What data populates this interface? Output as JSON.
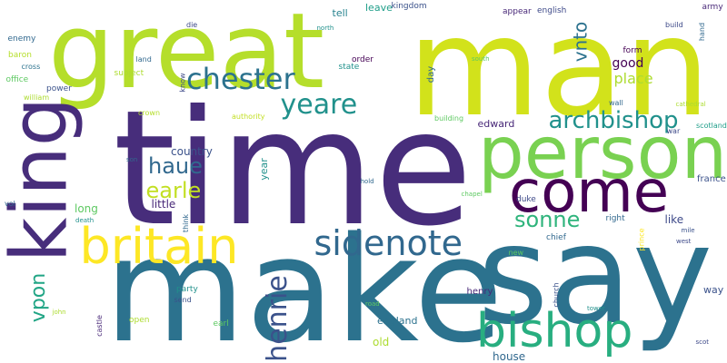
{
  "background": "#ffffff",
  "palette": [
    "#d2e21b",
    "#472d7b",
    "#2c728e",
    "#28ae80",
    "#79d151",
    "#31688e",
    "#3b528b",
    "#fde725"
  ],
  "words": [
    {
      "text": "man",
      "color": "#d2e21b"
    },
    {
      "text": "time",
      "color": "#472d7b"
    },
    {
      "text": "make",
      "color": "#2c728e"
    },
    {
      "text": "say",
      "color": "#2c728e"
    },
    {
      "text": "great",
      "color": "#b5de2b"
    },
    {
      "text": "person",
      "color": "#79d151"
    },
    {
      "text": "come",
      "color": "#440154"
    },
    {
      "text": "king",
      "color": "#472d7b"
    },
    {
      "text": "britain",
      "color": "#fde725"
    },
    {
      "text": "bishop",
      "color": "#28ae80"
    },
    {
      "text": "sidenote",
      "color": "#31688e"
    },
    {
      "text": "chester",
      "color": "#2c728e"
    },
    {
      "text": "archbishop",
      "color": "#21918c"
    },
    {
      "text": "henrie",
      "color": "#3b528b"
    },
    {
      "text": "haue",
      "color": "#31688e"
    },
    {
      "text": "earle",
      "color": "#c2df23"
    },
    {
      "text": "yeare",
      "color": "#21918c"
    },
    {
      "text": "sonne",
      "color": "#2fb47c"
    },
    {
      "text": "vpon",
      "color": "#21a585"
    },
    {
      "text": "vnto",
      "color": "#2c728e"
    },
    {
      "text": "place",
      "color": "#addc30"
    },
    {
      "text": "good",
      "color": "#440154"
    },
    {
      "text": "country",
      "color": "#3b528b"
    },
    {
      "text": "long",
      "color": "#5ec962"
    },
    {
      "text": "little",
      "color": "#482878"
    },
    {
      "text": "edward",
      "color": "#482878"
    },
    {
      "text": "house",
      "color": "#31688e"
    },
    {
      "text": "like",
      "color": "#3e4a89"
    },
    {
      "text": "way",
      "color": "#3b528b"
    },
    {
      "text": "day",
      "color": "#31688e"
    },
    {
      "text": "tell",
      "color": "#26828e"
    },
    {
      "text": "leave",
      "color": "#1f9e89"
    },
    {
      "text": "form",
      "color": "#440154"
    },
    {
      "text": "old",
      "color": "#addc30"
    },
    {
      "text": "year",
      "color": "#21918c"
    },
    {
      "text": "england",
      "color": "#2c728e"
    },
    {
      "text": "henry",
      "color": "#482878"
    },
    {
      "text": "duke",
      "color": "#3e4a89"
    },
    {
      "text": "right",
      "color": "#31688e"
    },
    {
      "text": "france",
      "color": "#3b528b"
    },
    {
      "text": "chief",
      "color": "#31688e"
    },
    {
      "text": "appear",
      "color": "#482878"
    },
    {
      "text": "english",
      "color": "#3e4a89"
    },
    {
      "text": "kingdom",
      "color": "#3b528b"
    },
    {
      "text": "army",
      "color": "#482878"
    },
    {
      "text": "build",
      "color": "#3e4a89"
    },
    {
      "text": "hand",
      "color": "#31688e"
    },
    {
      "text": "enemy",
      "color": "#31688e"
    },
    {
      "text": "baron",
      "color": "#b5de2b"
    },
    {
      "text": "cross",
      "color": "#2c728e"
    },
    {
      "text": "office",
      "color": "#5ec962"
    },
    {
      "text": "william",
      "color": "#addc30"
    },
    {
      "text": "power",
      "color": "#3b528b"
    },
    {
      "text": "subject",
      "color": "#addc30"
    },
    {
      "text": "land",
      "color": "#31688e"
    },
    {
      "text": "die",
      "color": "#3e4a89"
    },
    {
      "text": "north",
      "color": "#21918c"
    },
    {
      "text": "state",
      "color": "#21918c"
    },
    {
      "text": "order",
      "color": "#440154"
    },
    {
      "text": "south",
      "color": "#5ec962"
    },
    {
      "text": "know",
      "color": "#3e4a89"
    },
    {
      "text": "crown",
      "color": "#b5de2b"
    },
    {
      "text": "authority",
      "color": "#c2df23"
    },
    {
      "text": "building",
      "color": "#5ec962"
    },
    {
      "text": "wall",
      "color": "#31688e"
    },
    {
      "text": "war",
      "color": "#3e4a89"
    },
    {
      "text": "cathedral",
      "color": "#addc30"
    },
    {
      "text": "scotland",
      "color": "#1f9e89"
    },
    {
      "text": "son",
      "color": "#31688e"
    },
    {
      "text": "hold",
      "color": "#31688e"
    },
    {
      "text": "chapel",
      "color": "#5ec962"
    },
    {
      "text": "mile",
      "color": "#3b528b"
    },
    {
      "text": "west",
      "color": "#3e4a89"
    },
    {
      "text": "prince",
      "color": "#fde725"
    },
    {
      "text": "vol",
      "color": "#31688e"
    },
    {
      "text": "death",
      "color": "#21918c"
    },
    {
      "text": "think",
      "color": "#31688e"
    },
    {
      "text": "new",
      "color": "#5ec962"
    },
    {
      "text": "church",
      "color": "#3b528b"
    },
    {
      "text": "tower",
      "color": "#21918c"
    },
    {
      "text": "party",
      "color": "#21918c"
    },
    {
      "text": "send",
      "color": "#3b528b"
    },
    {
      "text": "earl",
      "color": "#5ec962"
    },
    {
      "text": "open",
      "color": "#addc30"
    },
    {
      "text": "castle",
      "color": "#482878"
    },
    {
      "text": "road",
      "color": "#5ec962"
    },
    {
      "text": "john",
      "color": "#addc30"
    },
    {
      "text": "scot",
      "color": "#3e4a89"
    }
  ]
}
